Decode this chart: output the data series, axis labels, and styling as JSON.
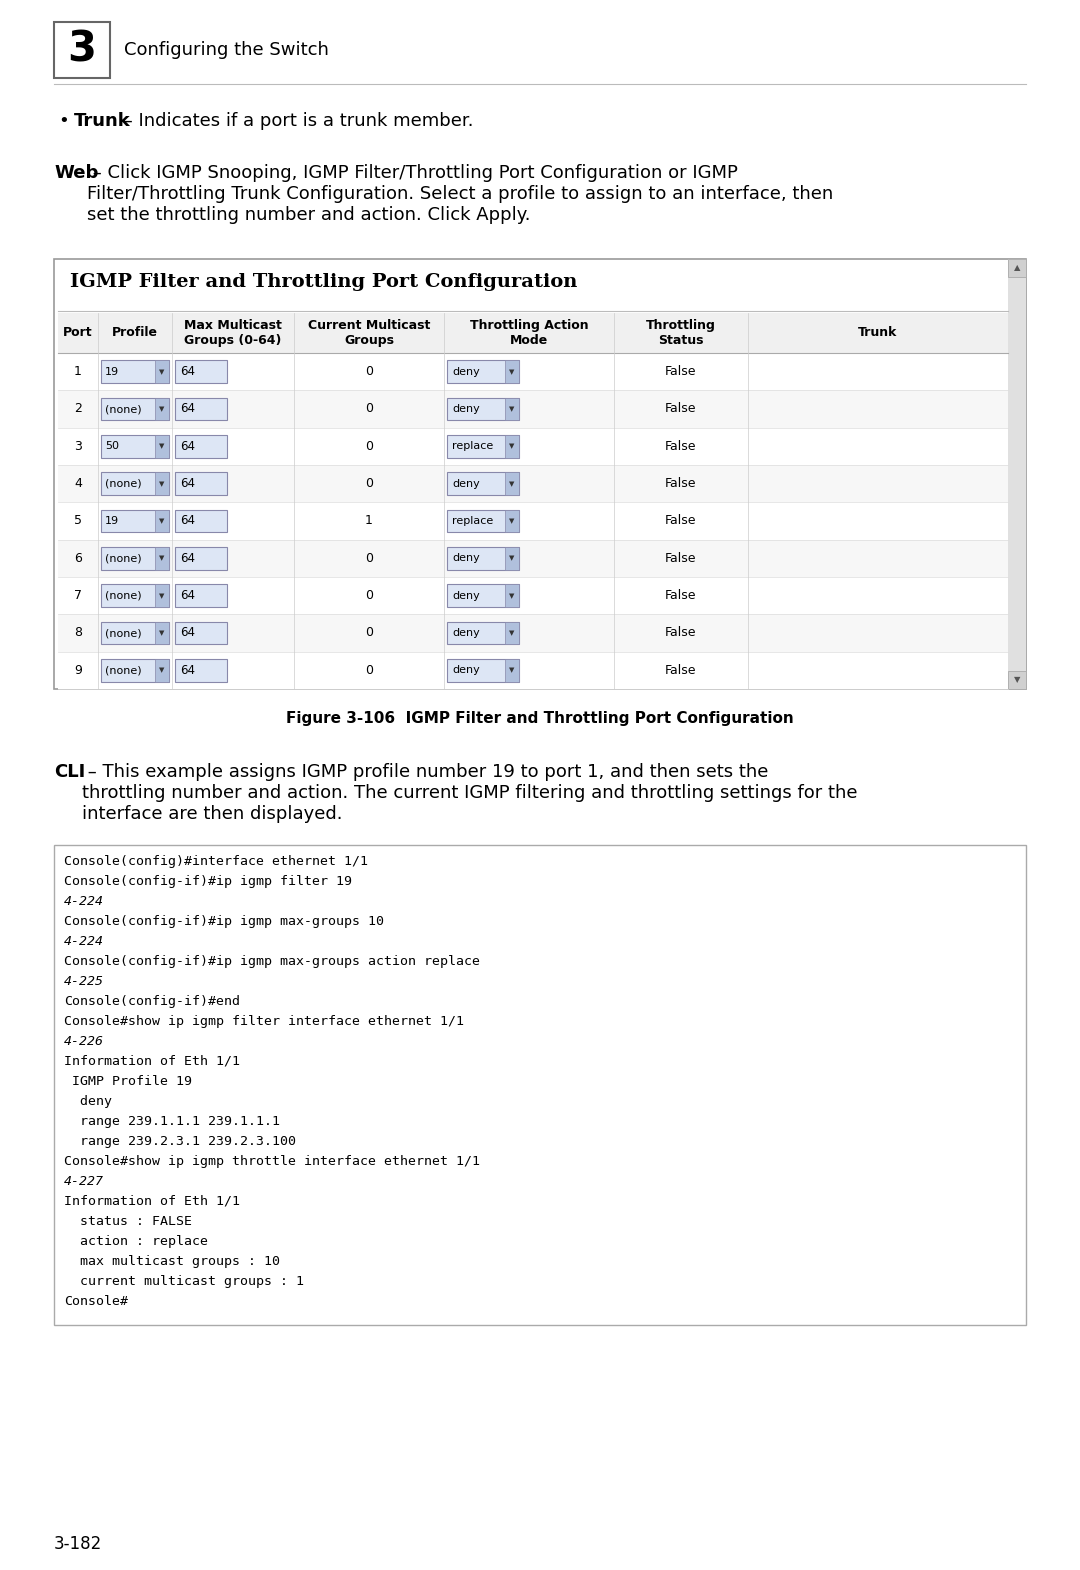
{
  "page_bg": "#ffffff",
  "header_number": "3",
  "header_text": "Configuring the Switch",
  "bullet_text_bold": "Trunk",
  "bullet_text_normal": " – Indicates if a port is a trunk member.",
  "web_text_bold": "Web",
  "web_text_normal": " – Click IGMP Snooping, IGMP Filter/Throttling Port Configuration or IGMP\nFilter/Throttling Trunk Configuration. Select a profile to assign to an interface, then\nset the throttling number and action. Click Apply.",
  "table_title": "IGMP Filter and Throttling Port Configuration",
  "table_headers": [
    "Port",
    "Profile",
    "Max Multicast\nGroups (0-64)",
    "Current Multicast\nGroups",
    "Throttling Action\nMode",
    "Throttling\nStatus",
    "Trunk"
  ],
  "table_rows": [
    [
      "1",
      "19",
      "64",
      "0",
      "deny",
      "False",
      ""
    ],
    [
      "2",
      "(none)",
      "64",
      "0",
      "deny",
      "False",
      ""
    ],
    [
      "3",
      "50",
      "64",
      "0",
      "replace",
      "False",
      ""
    ],
    [
      "4",
      "(none)",
      "64",
      "0",
      "deny",
      "False",
      ""
    ],
    [
      "5",
      "19",
      "64",
      "1",
      "replace",
      "False",
      ""
    ],
    [
      "6",
      "(none)",
      "64",
      "0",
      "deny",
      "False",
      ""
    ],
    [
      "7",
      "(none)",
      "64",
      "0",
      "deny",
      "False",
      ""
    ],
    [
      "8",
      "(none)",
      "64",
      "0",
      "deny",
      "False",
      ""
    ],
    [
      "9",
      "(none)",
      "64",
      "0",
      "deny",
      "False",
      ""
    ]
  ],
  "figure_caption": "Figure 3-106  IGMP Filter and Throttling Port Configuration",
  "cli_bold": "CLI",
  "cli_text": " – This example assigns IGMP profile number 19 to port 1, and then sets the\nthrottling number and action. The current IGMP filtering and throttling settings for the\ninterface are then displayed.",
  "code_lines": [
    [
      "Console(config)#interface ethernet 1/1",
      false
    ],
    [
      "Console(config-if)#ip igmp filter 19",
      false
    ],
    [
      "4-224",
      true
    ],
    [
      "Console(config-if)#ip igmp max-groups 10",
      false
    ],
    [
      "4-224",
      true
    ],
    [
      "Console(config-if)#ip igmp max-groups action replace",
      false
    ],
    [
      "4-225",
      true
    ],
    [
      "Console(config-if)#end",
      false
    ],
    [
      "Console#show ip igmp filter interface ethernet 1/1",
      false
    ],
    [
      "4-226",
      true
    ],
    [
      "Information of Eth 1/1",
      false
    ],
    [
      " IGMP Profile 19",
      false
    ],
    [
      "  deny",
      false
    ],
    [
      "  range 239.1.1.1 239.1.1.1",
      false
    ],
    [
      "  range 239.2.3.1 239.2.3.100",
      false
    ],
    [
      "Console#show ip igmp throttle interface ethernet 1/1",
      false
    ],
    [
      "4-227",
      true
    ],
    [
      "Information of Eth 1/1",
      false
    ],
    [
      "  status : FALSE",
      false
    ],
    [
      "  action : replace",
      false
    ],
    [
      "  max multicast groups : 10",
      false
    ],
    [
      "  current multicast groups : 1",
      false
    ],
    [
      "Console#",
      false
    ]
  ],
  "footer_text": "3-182"
}
